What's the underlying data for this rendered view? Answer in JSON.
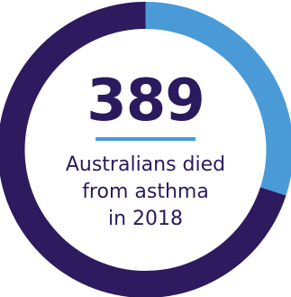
{
  "chart_data": {
    "type": "pie",
    "categories": [
      "",
      ""
    ],
    "values": [
      30,
      70
    ],
    "colors": [
      "#4a9ad8",
      "#2e1a5e"
    ],
    "title": "",
    "center_value": "389",
    "center_text": [
      "Australians died",
      "from asthma",
      "in 2018"
    ]
  }
}
